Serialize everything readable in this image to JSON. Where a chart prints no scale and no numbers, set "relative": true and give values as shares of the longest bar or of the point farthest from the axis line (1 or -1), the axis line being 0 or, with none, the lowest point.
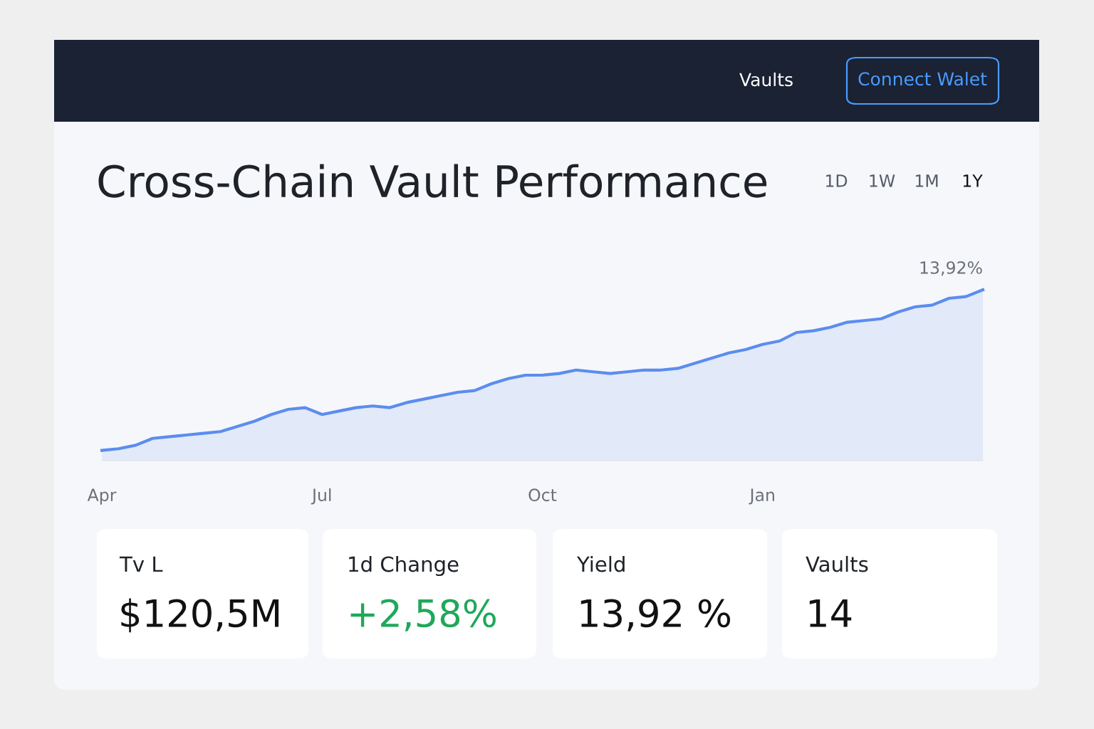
{
  "chart_data": {
    "type": "area",
    "title": "Cross-Chain Vault Performance",
    "relative": true,
    "categories": [
      "Apr",
      null,
      null,
      null,
      null,
      null,
      null,
      null,
      null,
      null,
      null,
      null,
      null,
      "Jul",
      null,
      null,
      null,
      null,
      null,
      null,
      null,
      null,
      null,
      null,
      null,
      null,
      "Oct",
      null,
      null,
      null,
      null,
      null,
      null,
      null,
      null,
      null,
      null,
      null,
      null,
      "Jan",
      null,
      null,
      null,
      null,
      null,
      null,
      null,
      null,
      null,
      null,
      null,
      null,
      null
    ],
    "series": [
      {
        "color": "#5b8def",
        "values": [
          0.06,
          0.07,
          0.09,
          0.13,
          0.14,
          0.15,
          0.16,
          0.17,
          0.2,
          0.23,
          0.27,
          0.3,
          0.31,
          0.27,
          0.29,
          0.31,
          0.32,
          0.31,
          0.34,
          0.36,
          0.38,
          0.4,
          0.41,
          0.45,
          0.48,
          0.5,
          0.5,
          0.51,
          0.53,
          0.52,
          0.51,
          0.52,
          0.53,
          0.53,
          0.54,
          0.57,
          0.6,
          0.63,
          0.65,
          0.68,
          0.7,
          0.75,
          0.76,
          0.78,
          0.81,
          0.82,
          0.83,
          0.87,
          0.9,
          0.91,
          0.95,
          0.96,
          1.0
        ]
      }
    ],
    "tick_labels": "x",
    "annotations": [
      "Vaults",
      "Connect Walet",
      "1D",
      "1W",
      "1M",
      "1Y",
      "Tv L",
      "$120,5M",
      "1d Change",
      "+2,58%",
      "Yield",
      "13,92 %",
      "Vaults",
      "14",
      "13,92%"
    ]
  }
}
